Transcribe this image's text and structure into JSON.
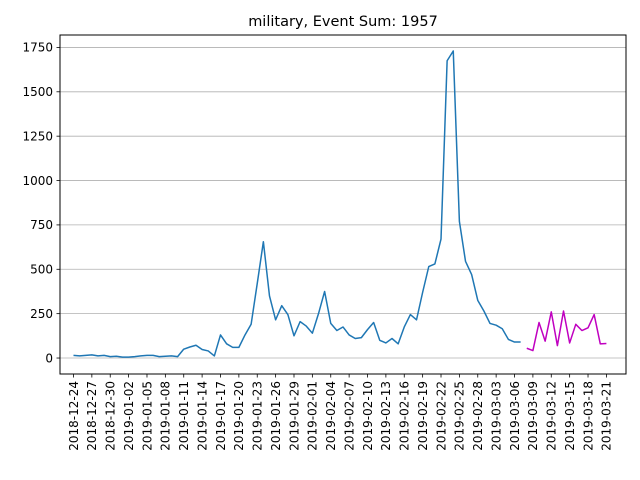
{
  "chart_data": {
    "type": "line",
    "title": "military, Event Sum: 1957",
    "xlabel": "",
    "ylabel": "",
    "ylim": [
      -90,
      1820
    ],
    "yticks": [
      0,
      250,
      500,
      750,
      1000,
      1250,
      1500,
      1750
    ],
    "grid": "horizontal",
    "x_start": "2018-12-24",
    "x_end": "2019-03-22",
    "xticks": [
      "2018-12-24",
      "2018-12-27",
      "2018-12-30",
      "2019-01-02",
      "2019-01-05",
      "2019-01-08",
      "2019-01-11",
      "2019-01-14",
      "2019-01-17",
      "2019-01-20",
      "2019-01-23",
      "2019-01-26",
      "2019-01-29",
      "2019-02-01",
      "2019-02-04",
      "2019-02-07",
      "2019-02-10",
      "2019-02-13",
      "2019-02-16",
      "2019-02-19",
      "2019-02-22",
      "2019-02-25",
      "2019-02-28",
      "2019-03-03",
      "2019-03-06",
      "2019-03-09",
      "2019-03-12",
      "2019-03-15",
      "2019-03-18",
      "2019-03-21"
    ],
    "series": [
      {
        "color": "#1f77b4",
        "x": [
          "2018-12-24",
          "2018-12-25",
          "2018-12-26",
          "2018-12-27",
          "2018-12-28",
          "2018-12-29",
          "2018-12-30",
          "2018-12-31",
          "2019-01-01",
          "2019-01-02",
          "2019-01-03",
          "2019-01-04",
          "2019-01-05",
          "2019-01-06",
          "2019-01-07",
          "2019-01-08",
          "2019-01-09",
          "2019-01-10",
          "2019-01-11",
          "2019-01-12",
          "2019-01-13",
          "2019-01-14",
          "2019-01-15",
          "2019-01-16",
          "2019-01-17",
          "2019-01-18",
          "2019-01-19",
          "2019-01-20",
          "2019-01-21",
          "2019-01-22",
          "2019-01-23",
          "2019-01-24",
          "2019-01-25",
          "2019-01-26",
          "2019-01-27",
          "2019-01-28",
          "2019-01-29",
          "2019-01-30",
          "2019-01-31",
          "2019-02-01",
          "2019-02-02",
          "2019-02-03",
          "2019-02-04",
          "2019-02-05",
          "2019-02-06",
          "2019-02-07",
          "2019-02-08",
          "2019-02-09",
          "2019-02-10",
          "2019-02-11",
          "2019-02-12",
          "2019-02-13",
          "2019-02-14",
          "2019-02-15",
          "2019-02-16",
          "2019-02-17",
          "2019-02-18",
          "2019-02-19",
          "2019-02-20",
          "2019-02-21",
          "2019-02-22",
          "2019-02-23",
          "2019-02-24",
          "2019-02-25",
          "2019-02-26",
          "2019-02-27",
          "2019-02-28",
          "2019-03-01",
          "2019-03-02",
          "2019-03-03",
          "2019-03-04",
          "2019-03-05",
          "2019-03-06",
          "2019-03-07"
        ],
        "y": [
          15,
          12,
          15,
          18,
          12,
          15,
          8,
          10,
          5,
          5,
          8,
          12,
          15,
          15,
          8,
          10,
          12,
          8,
          50,
          62,
          72,
          48,
          40,
          12,
          130,
          80,
          60,
          60,
          130,
          190,
          420,
          655,
          350,
          215,
          295,
          245,
          125,
          205,
          180,
          140,
          250,
          375,
          195,
          155,
          175,
          130,
          110,
          115,
          160,
          200,
          100,
          85,
          110,
          80,
          175,
          245,
          215,
          370,
          515,
          530,
          670,
          1675,
          1730,
          770,
          545,
          470,
          325,
          265,
          195,
          185,
          165,
          105,
          90,
          90
        ]
      },
      {
        "color": "#c000c0",
        "x": [
          "2019-03-08",
          "2019-03-09",
          "2019-03-10",
          "2019-03-11",
          "2019-03-12",
          "2019-03-13",
          "2019-03-14",
          "2019-03-15",
          "2019-03-16",
          "2019-03-17",
          "2019-03-18",
          "2019-03-19",
          "2019-03-20",
          "2019-03-21"
        ],
        "y": [
          55,
          42,
          200,
          95,
          260,
          70,
          265,
          85,
          190,
          155,
          170,
          245,
          80,
          82
        ]
      }
    ]
  }
}
